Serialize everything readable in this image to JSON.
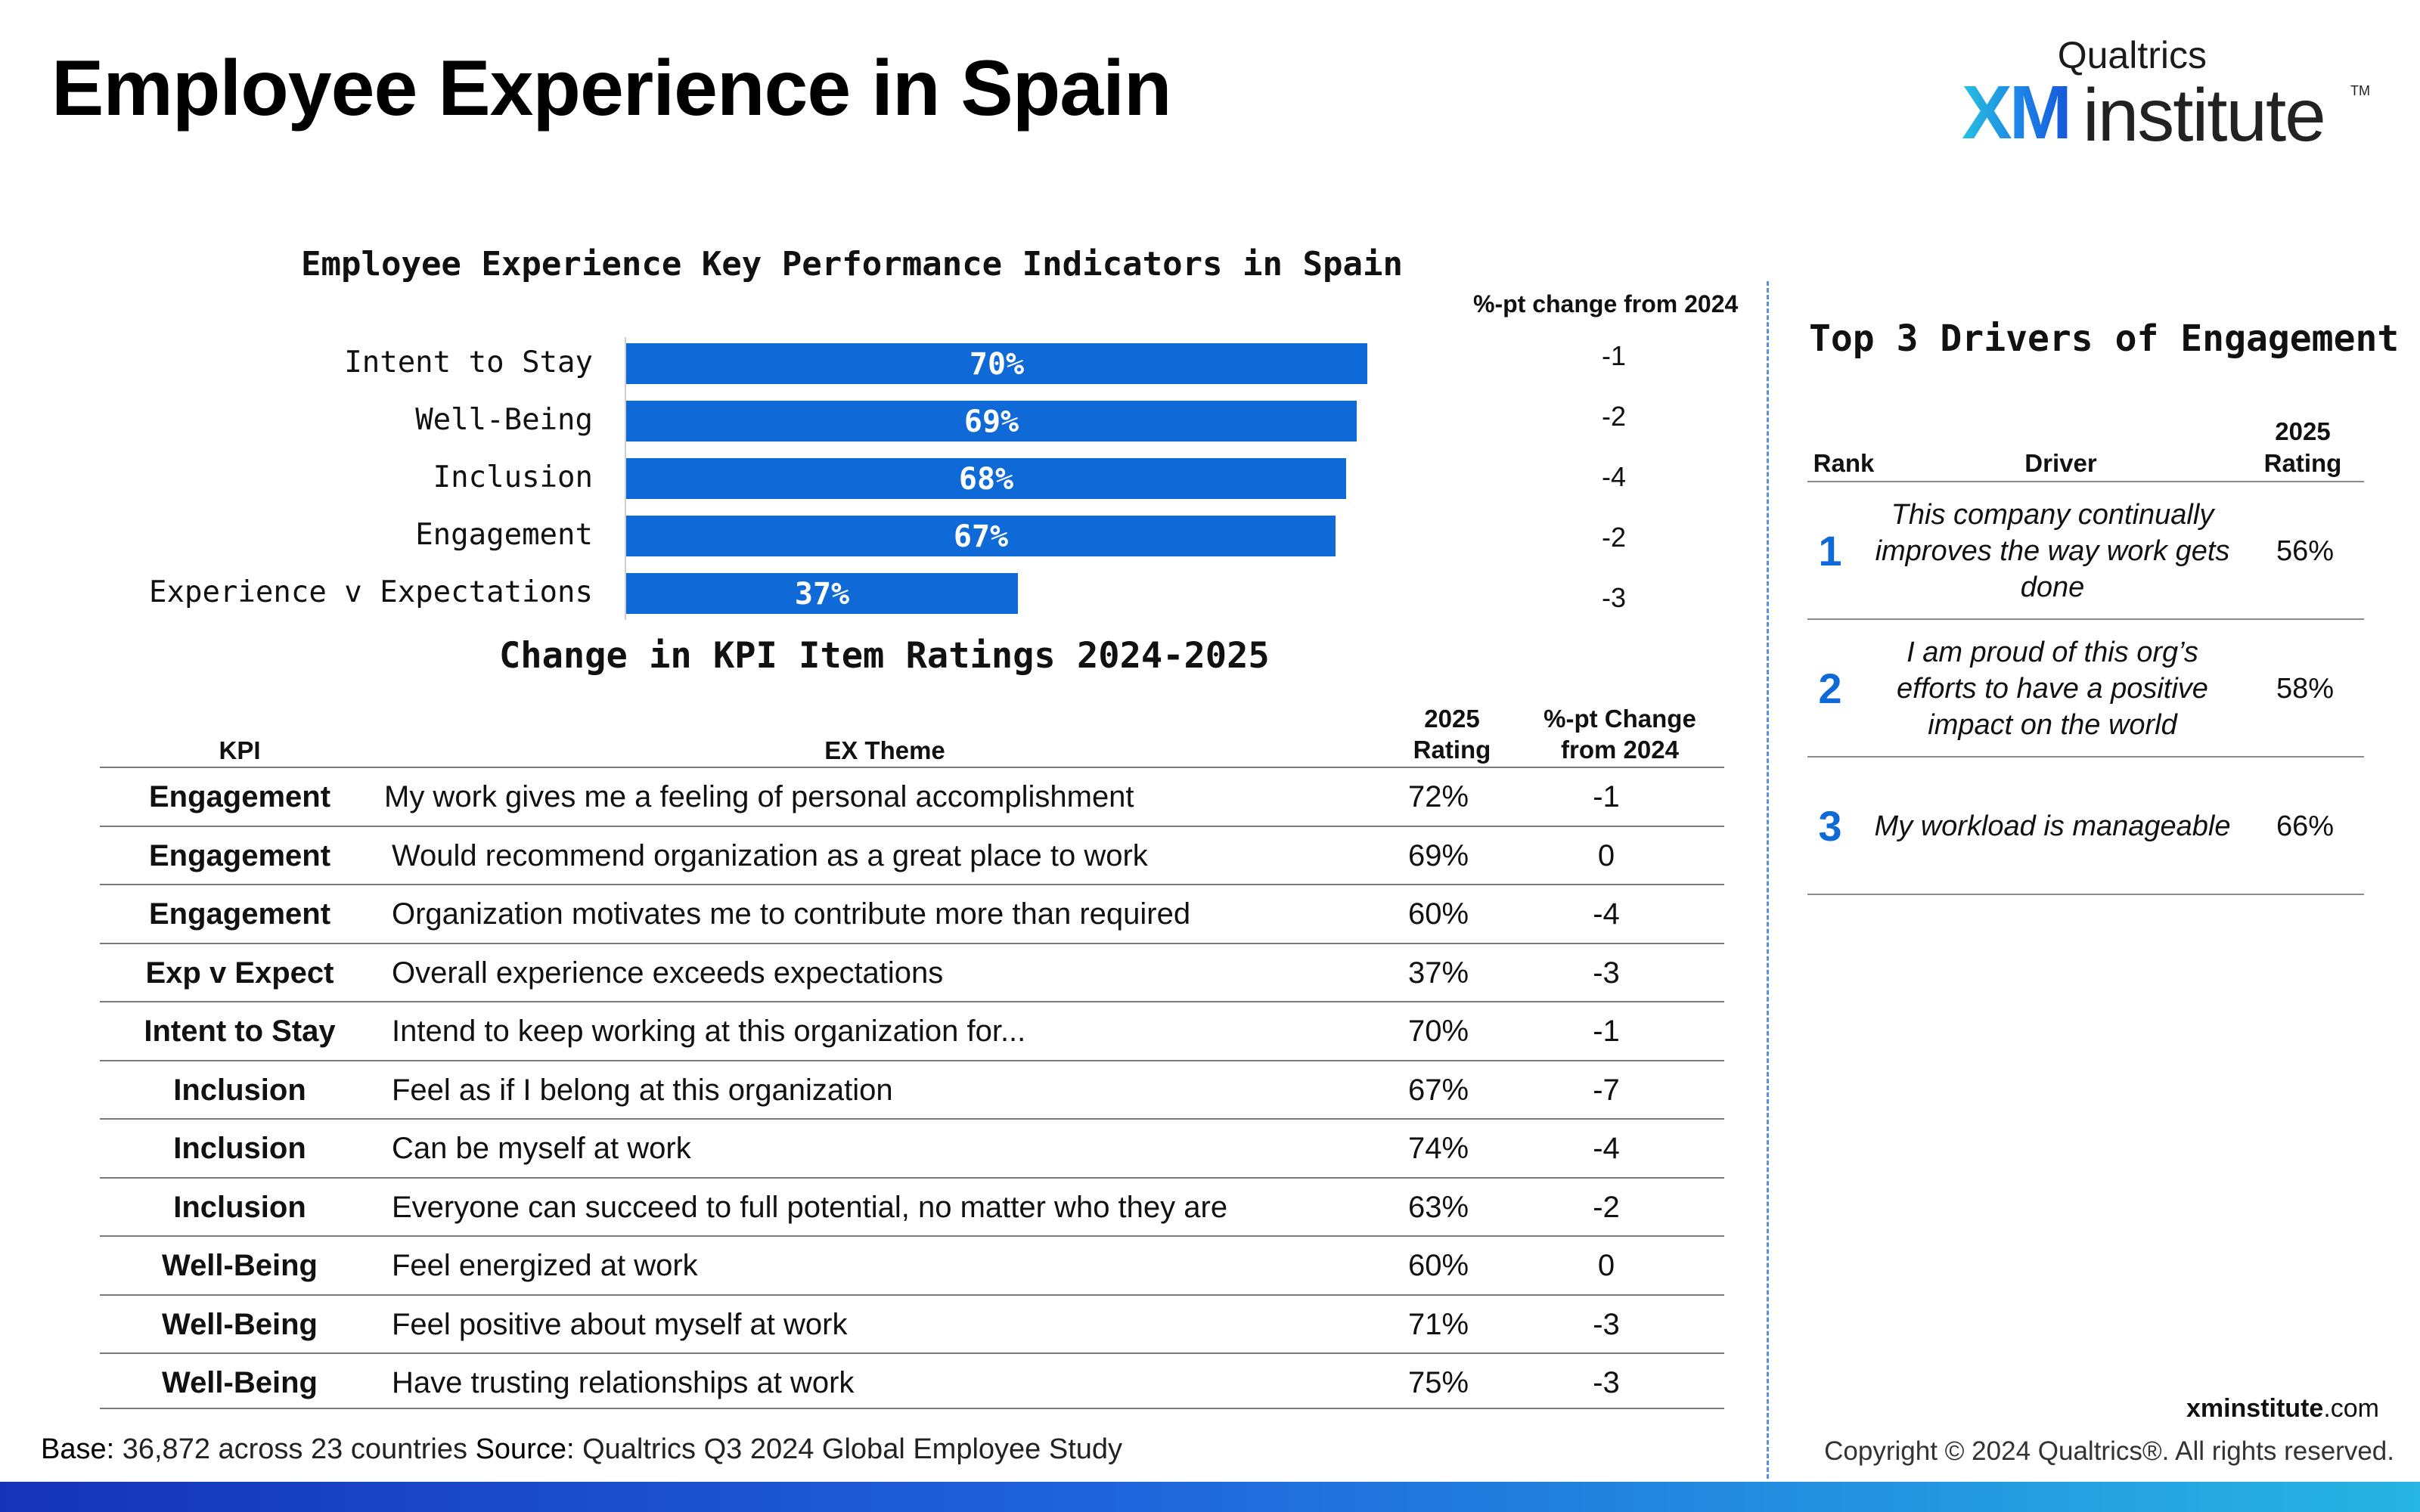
{
  "page": {
    "title": "Employee Experience in Spain"
  },
  "logo": {
    "top_text": "Qualtrics",
    "xm_text": "XM",
    "institute_text": "institute",
    "tm": "TM"
  },
  "chart_data": {
    "type": "bar",
    "orientation": "horizontal",
    "title": "Employee Experience Key Performance Indicators in Spain",
    "categories": [
      "Intent to Stay",
      "Well-Being",
      "Inclusion",
      "Engagement",
      "Experience v Expectations"
    ],
    "values": [
      70,
      69,
      68,
      67,
      37
    ],
    "value_labels": [
      "70%",
      "69%",
      "68%",
      "67%",
      "37%"
    ],
    "change_header": "%-pt change from 2024",
    "change_values": [
      "-1",
      "-2",
      "-4",
      "-2",
      "-3"
    ],
    "xlim": [
      0,
      100
    ],
    "color": "#0f6ad8",
    "grid": false
  },
  "kpi_table": {
    "title": "Change in KPI Item Ratings 2024-2025",
    "headers": {
      "kpi": "KPI",
      "theme": "EX Theme",
      "rating_line1": "2025",
      "rating_line2": "Rating",
      "change_line1": "%-pt Change",
      "change_line2": "from 2024"
    },
    "rows": [
      {
        "kpi": "Engagement",
        "theme": "My work gives me a feeling of personal accomplishment",
        "rating": "72%",
        "change": "-1"
      },
      {
        "kpi": "Engagement",
        "theme": "Would recommend organization as a great place to work",
        "rating": "69%",
        "change": "0"
      },
      {
        "kpi": "Engagement",
        "theme": "Organization motivates me to contribute more than required",
        "rating": "60%",
        "change": "-4"
      },
      {
        "kpi": "Exp v Expect",
        "theme": "Overall experience exceeds expectations",
        "rating": "37%",
        "change": "-3"
      },
      {
        "kpi": "Intent to Stay",
        "theme": "Intend to keep working at this organization for...",
        "rating": "70%",
        "change": "-1"
      },
      {
        "kpi": "Inclusion",
        "theme": "Feel as if I belong at this organization",
        "rating": "67%",
        "change": "-7"
      },
      {
        "kpi": "Inclusion",
        "theme": "Can be myself at work",
        "rating": "74%",
        "change": "-4"
      },
      {
        "kpi": "Inclusion",
        "theme": "Everyone can succeed to full potential, no matter who they are",
        "rating": "63%",
        "change": "-2"
      },
      {
        "kpi": "Well-Being",
        "theme": "Feel energized at work",
        "rating": "60%",
        "change": "0"
      },
      {
        "kpi": "Well-Being",
        "theme": "Feel positive about myself at work",
        "rating": "71%",
        "change": "-3"
      },
      {
        "kpi": "Well-Being",
        "theme": "Have trusting relationships at work",
        "rating": "75%",
        "change": "-3"
      }
    ]
  },
  "drivers": {
    "title": "Top 3 Drivers of Engagement",
    "headers": {
      "rank": "Rank",
      "driver": "Driver",
      "rating_line1": "2025",
      "rating_line2": "Rating"
    },
    "rows": [
      {
        "rank": "1",
        "driver": "This company continually improves the way work gets done",
        "rating": "56%"
      },
      {
        "rank": "2",
        "driver": "I am proud of this org’s efforts to have a positive impact on the world",
        "rating": "58%"
      },
      {
        "rank": "3",
        "driver": "My workload is manageable",
        "rating": "66%"
      }
    ]
  },
  "footer": {
    "base_label": "Base:",
    "base_text": " 36,872 across 23 countries ",
    "source_label": "Source:",
    "source_text": " Qualtrics Q3 2024 Global Employee Study",
    "site_bold": "xminstitute",
    "site_rest": ".com",
    "copyright": "Copyright © 2024 Qualtrics®. All rights reserved."
  }
}
